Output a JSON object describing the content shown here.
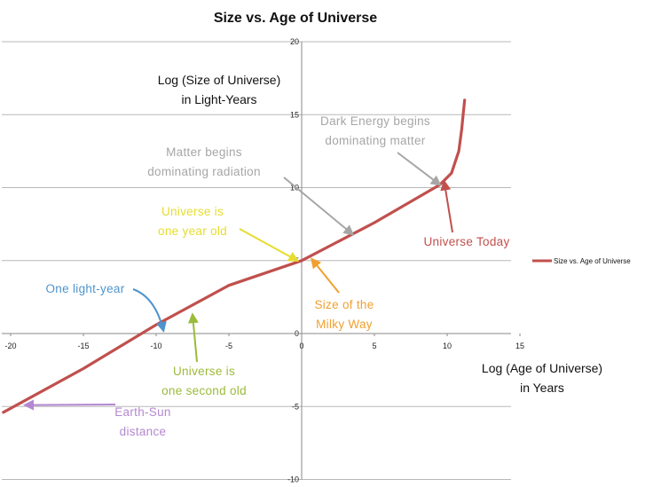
{
  "chart_data": {
    "type": "line",
    "title": "Size vs. Age of Universe",
    "xlabel": [
      "Log (Age of Universe)",
      "in Years"
    ],
    "ylabel": [
      "Log (Size of Universe)",
      "in Light-Years"
    ],
    "xlim": [
      -20,
      15
    ],
    "ylim": [
      -10,
      20
    ],
    "x_ticks": [
      "-20",
      "-15",
      "-10",
      "-5",
      "0",
      "5",
      "10",
      "15"
    ],
    "y_ticks": [
      "20",
      "15",
      "10",
      "5",
      "0",
      "-5",
      "-10"
    ],
    "grid": "horizontal",
    "legend_position": "right",
    "series": [
      {
        "name": "Size vs. Age of Universe",
        "color": "#c0504d",
        "x": [
          -20.5,
          -15,
          -10,
          -5,
          0,
          5,
          9.5,
          10.3,
          10.8,
          11.0,
          11.1,
          11.2
        ],
        "y": [
          -5.4,
          -2.4,
          0.6,
          3.3,
          5.0,
          7.6,
          10.2,
          11.0,
          12.5,
          14.0,
          15.0,
          16.0
        ]
      }
    ],
    "annotations": [
      {
        "text": [
          "Dark Energy begins",
          "dominating matter"
        ],
        "color": "#a6a6a6",
        "x": 9.5,
        "y": 10.2
      },
      {
        "text": [
          "Matter begins",
          "dominating radiation"
        ],
        "color": "#a6a6a6",
        "x": 3.5,
        "y": 6.8
      },
      {
        "text": [
          "Universe is",
          "one year old"
        ],
        "color": "#e6dd2e",
        "x": -0.3,
        "y": 5.0
      },
      {
        "text": [
          "Universe Today"
        ],
        "color": "#c0504d",
        "x": 9.8,
        "y": 10.4
      },
      {
        "text": [
          "One light-year"
        ],
        "color": "#4f94cd",
        "x": -9.5,
        "y": 0.2
      },
      {
        "text": [
          "Size of the",
          "Milky Way"
        ],
        "color": "#f0a030",
        "x": 0.7,
        "y": 5.1
      },
      {
        "text": [
          "Universe is",
          "one second old"
        ],
        "color": "#9bbb3b",
        "x": -7.5,
        "y": 1.3
      },
      {
        "text": [
          "Earth-Sun",
          "distance"
        ],
        "color": "#b388d0",
        "x": -19,
        "y": -4.9
      }
    ]
  }
}
